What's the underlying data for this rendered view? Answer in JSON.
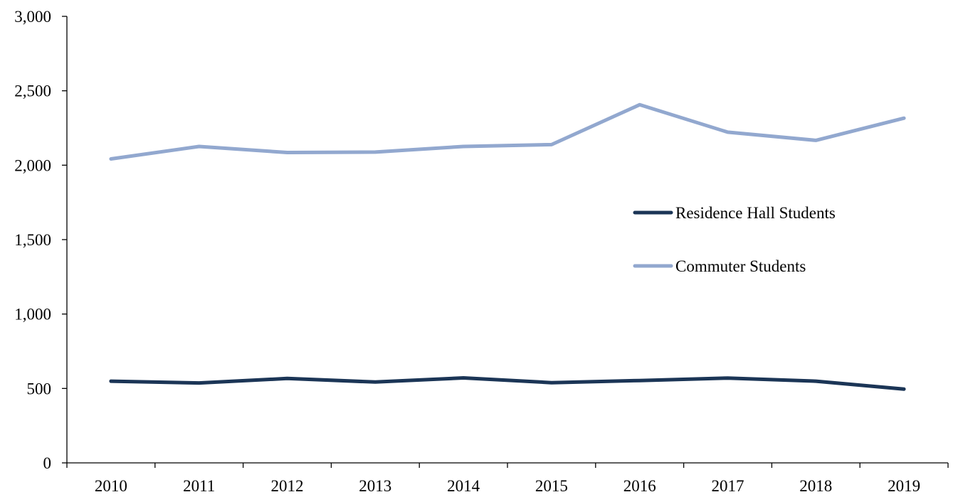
{
  "chart_data": {
    "type": "line",
    "title": "",
    "xlabel": "",
    "ylabel": "",
    "x": [
      "2010",
      "2011",
      "2012",
      "2013",
      "2014",
      "2015",
      "2016",
      "2017",
      "2018",
      "2019"
    ],
    "ylim": [
      0,
      3000
    ],
    "yticks": [
      0,
      500,
      1000,
      1500,
      2000,
      2500,
      3000
    ],
    "ytick_labels": [
      "0",
      "500",
      "1,000",
      "1,500",
      "2,000",
      "2,500",
      "3,000"
    ],
    "grid": false,
    "legend_position": "right",
    "series": [
      {
        "name": "Residence Hall Students",
        "color": "#1b3556",
        "values": [
          549,
          537,
          567,
          543,
          571,
          539,
          553,
          570,
          549,
          496
        ]
      },
      {
        "name": "Commuter Students",
        "color": "#92a8cf",
        "values": [
          2042,
          2126,
          2085,
          2088,
          2126,
          2138,
          2406,
          2222,
          2167,
          2316
        ]
      }
    ]
  }
}
